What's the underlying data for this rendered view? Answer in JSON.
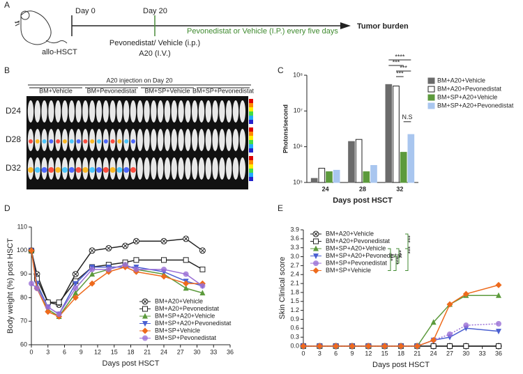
{
  "panel_labels": [
    "A",
    "B",
    "C",
    "D",
    "E"
  ],
  "panel_a": {
    "day0": "Day 0",
    "day20": "Day 20",
    "start": "allo-HSCT",
    "treatment1": "Pevonedistat/ Vehicle (i.p.)",
    "injection": "A20 (I.V.)",
    "treatment2": "Pevonedistat or Vehicle (I.P.) every five days",
    "end": "Tumor burden"
  },
  "panel_b": {
    "header": "A20 injection on Day 20",
    "groups": [
      "BM+Vehicle",
      "BM+Pevonedistat",
      "BM+SP+Vehicle",
      "BM+SP+Pevonedistat"
    ],
    "rows": [
      "D24",
      "D28",
      "D32"
    ]
  },
  "chart_data": [
    {
      "type": "bar",
      "xlabel": "Days post HSCT",
      "ylabel": "Photons/second",
      "log_y": true,
      "legend": "right",
      "categories": [
        "24",
        "28",
        "32"
      ],
      "ylim": [
        100000,
        100000000
      ],
      "yticks": [
        {
          "value": 100000,
          "label": "10⁵"
        },
        {
          "value": 1000000,
          "label": "10⁶"
        },
        {
          "value": 10000000,
          "label": "10⁷"
        },
        {
          "value": 100000000,
          "label": "10⁸"
        }
      ],
      "series": [
        {
          "name": "BM+A20+Vehicle",
          "color": "#6b6b6b",
          "values": [
            130000,
            1400000,
            55000000
          ]
        },
        {
          "name": "BM+A20+Pevonedistat",
          "color": "#ffffff",
          "values": [
            250000,
            1600000,
            50000000
          ]
        },
        {
          "name": "BM+SP+A20+Vehicle",
          "color": "#5c9a3c",
          "values": [
            200000,
            200000,
            700000
          ]
        },
        {
          "name": "BM+SP+A20+Pevonedistat",
          "color": "#a9c6ef",
          "values": [
            220000,
            300000,
            2200000
          ]
        }
      ],
      "annotations": [
        "****",
        "***",
        "***",
        "***",
        "N.S"
      ]
    },
    {
      "type": "line",
      "xlabel": "Days post HSCT",
      "ylabel": "Body weight (%) post HSCT",
      "legend": "lower right",
      "x": [
        0,
        1,
        3,
        5,
        8,
        11,
        14,
        17,
        19,
        24,
        28,
        31
      ],
      "xlim": [
        0,
        36
      ],
      "xticks": [
        0,
        3,
        6,
        9,
        12,
        15,
        18,
        21,
        24,
        27,
        30,
        33,
        36
      ],
      "ylim": [
        60,
        110
      ],
      "yticks": [
        60,
        70,
        80,
        90,
        100,
        110
      ],
      "series": [
        {
          "name": "BM+A20+Vehicle",
          "color": "#222222",
          "marker": "circle-x",
          "values": [
            100,
            90,
            78,
            77,
            90,
            100,
            101,
            102,
            104,
            104,
            105,
            100
          ]
        },
        {
          "name": "BM+A20+Pevonedistat",
          "color": "#222222",
          "marker": "square",
          "values": [
            100,
            88,
            78,
            78,
            87,
            93,
            94,
            95,
            96,
            96,
            96,
            92
          ]
        },
        {
          "name": "BM+SP+A20+Vehicle",
          "color": "#5c9a3c",
          "marker": "triangle",
          "values": [
            100,
            85,
            75,
            72,
            82,
            90,
            92,
            94,
            92,
            90,
            84,
            82
          ]
        },
        {
          "name": "BM+SP+A20+Pevonedistat",
          "color": "#4a5fd1",
          "marker": "triangle-down",
          "values": [
            100,
            86,
            76,
            73,
            86,
            93,
            93,
            93,
            93,
            91,
            87,
            85
          ]
        },
        {
          "name": "BM+SP+Vehicle",
          "color": "#ee6a1c",
          "marker": "diamond",
          "values": [
            100,
            84,
            74,
            72,
            80,
            86,
            91,
            93,
            91,
            89,
            86,
            86
          ]
        },
        {
          "name": "BM+SP+Pevonedistat",
          "color": "#9a6fd6",
          "marker": "circle",
          "values": [
            86,
            84,
            76,
            73,
            84,
            92,
            92,
            94,
            92,
            92,
            90,
            85
          ]
        }
      ]
    },
    {
      "type": "line",
      "xlabel": "Days post HSCT",
      "ylabel": "Skin Clinical score",
      "legend": "upper left",
      "x": [
        0,
        3,
        6,
        9,
        12,
        15,
        18,
        21,
        24,
        27,
        30,
        36
      ],
      "xlim": [
        0,
        36
      ],
      "xticks": [
        0,
        3,
        6,
        9,
        12,
        15,
        18,
        21,
        24,
        27,
        30,
        33,
        36
      ],
      "ylim": [
        0,
        3.9
      ],
      "yticks": [
        {
          "value": 0,
          "label": "0.0"
        },
        0.3,
        0.6,
        0.9,
        1.2,
        1.5,
        1.8,
        2.1,
        2.4,
        2.7,
        {
          "value": 3,
          "label": "3.0"
        },
        3.3,
        3.6,
        3.9
      ],
      "series": [
        {
          "name": "BM+A20+Vehicle",
          "color": "#222222",
          "marker": "circle-x",
          "values": [
            0,
            0,
            0,
            0,
            0,
            0,
            0,
            0,
            0,
            0,
            0,
            0
          ]
        },
        {
          "name": "BM+A20+Pevonedistat",
          "color": "#222222",
          "marker": "square",
          "values": [
            0,
            0,
            0,
            0,
            0,
            0,
            0,
            0,
            0,
            0,
            0,
            0
          ]
        },
        {
          "name": "BM+SP+A20+Vehicle",
          "color": "#5c9a3c",
          "marker": "triangle",
          "values": [
            0,
            0,
            0,
            0,
            0,
            0,
            0,
            0,
            0.8,
            1.4,
            1.7,
            1.7
          ]
        },
        {
          "name": "BM+SP+A20+Pevonedistat",
          "color": "#4a5fd1",
          "marker": "triangle-down",
          "values": [
            0,
            0,
            0,
            0,
            0,
            0,
            0,
            0,
            0.2,
            0.3,
            0.6,
            0.5
          ]
        },
        {
          "name": "BM+SP+Pevonedistat",
          "color": "#9a6fd6",
          "marker": "circle",
          "dash": "dotted",
          "values": [
            0,
            0,
            0,
            0,
            0,
            0,
            0,
            0,
            0.2,
            0.4,
            0.7,
            0.75
          ]
        },
        {
          "name": "BM+SP+Vehicle",
          "color": "#ee6a1c",
          "marker": "diamond",
          "values": [
            0,
            0,
            0,
            0,
            0,
            0,
            0,
            0,
            0.2,
            1.4,
            1.75,
            2.05
          ]
        }
      ],
      "annotations": [
        "***",
        "***",
        "***",
        "***",
        "***"
      ]
    }
  ]
}
